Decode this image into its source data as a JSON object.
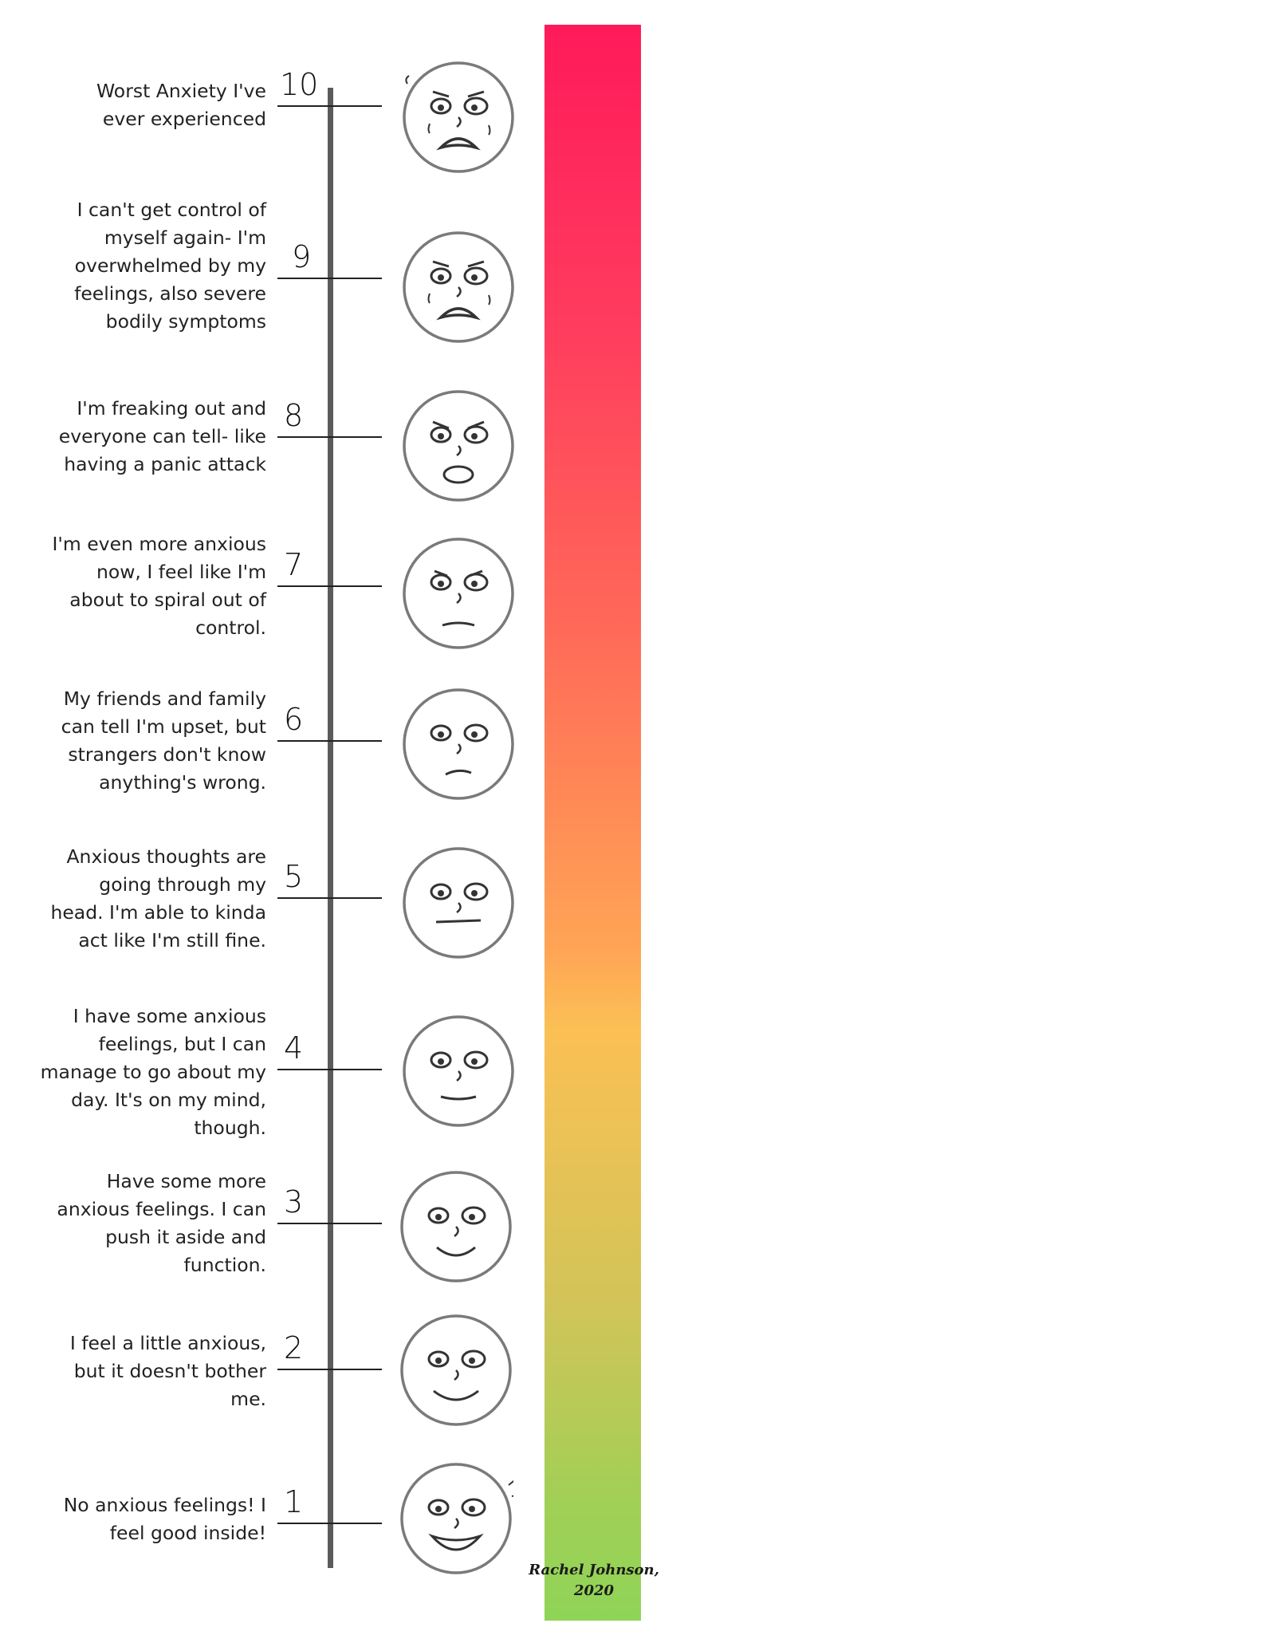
{
  "levels": [
    {
      "number": "10",
      "description": "Worst Anxiety I've\never experienced",
      "face_icon": "terrified-face-icon"
    },
    {
      "number": "9",
      "description": "I can't get control of\nmyself again- I'm\noverwhelmed by my\nfeelings, also severe\nbodily symptoms",
      "face_icon": "crying-overwhelmed-face-icon"
    },
    {
      "number": "8",
      "description": "I'm freaking out and\neveryone can tell- like\nhaving a panic attack",
      "face_icon": "panicking-face-icon"
    },
    {
      "number": "7",
      "description": "I'm even more anxious\nnow, I feel like I'm\nabout to spiral out of\ncontrol.",
      "face_icon": "very-anxious-face-icon"
    },
    {
      "number": "6",
      "description": "My friends and family\ncan tell I'm upset, but\nstrangers don't know\nanything's wrong.",
      "face_icon": "upset-face-icon"
    },
    {
      "number": "5",
      "description": "Anxious thoughts are\ngoing through my\nhead. I'm able to kinda\nact like I'm still fine.",
      "face_icon": "neutral-face-icon"
    },
    {
      "number": "4",
      "description": "I have some anxious\nfeelings, but I can\nmanage to go about my\nday. It's on my mind,\nthough.",
      "face_icon": "slight-smile-face-icon"
    },
    {
      "number": "3",
      "description": "Have some more\nanxious feelings. I can\npush it aside and\nfunction.",
      "face_icon": "smiling-face-icon"
    },
    {
      "number": "2",
      "description": "I feel a little anxious,\nbut it doesn't bother\nme.",
      "face_icon": "content-face-icon"
    },
    {
      "number": "1",
      "description": "No anxious feelings! I\nfeel good inside!",
      "face_icon": "happy-face-icon"
    }
  ],
  "signature": "Rachel Johnson,\n2020",
  "colors": {
    "top": "#ff1a5a",
    "middle": "#fbc054",
    "bottom": "#8fd457",
    "axis": "#5b5b5b"
  }
}
